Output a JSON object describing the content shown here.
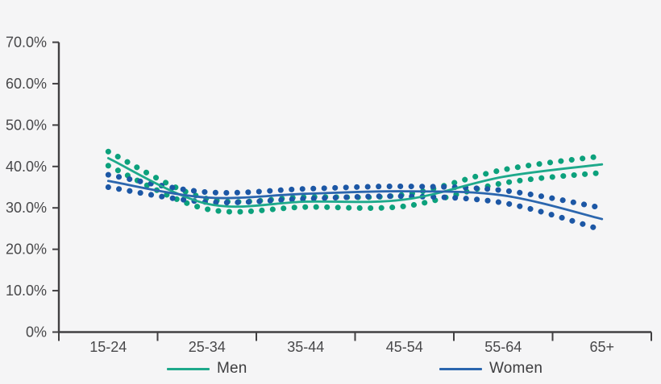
{
  "colors": {
    "background": "#f5f5f6",
    "axis": "#414042",
    "label_text": "#48484a",
    "men_line": "#1ea98b",
    "men_dots": "#0ca17c",
    "women_line": "#2b66ae",
    "women_dots": "#1c57a5"
  },
  "chart_data": {
    "type": "line",
    "title": "",
    "xlabel": "",
    "ylabel": "",
    "ylim": [
      0,
      70
    ],
    "grid": false,
    "legend_position": "bottom",
    "categories": [
      "15-24",
      "25-34",
      "35-44",
      "45-54",
      "55-64",
      "65+"
    ],
    "y_ticks": [
      {
        "value": 70,
        "label": "70.0%"
      },
      {
        "value": 60,
        "label": "60.0%"
      },
      {
        "value": 50,
        "label": "50.0%"
      },
      {
        "value": 40,
        "label": "40.0%"
      },
      {
        "value": 30,
        "label": "30.0%"
      },
      {
        "value": 20,
        "label": "20.0%"
      },
      {
        "value": 10,
        "label": "10.0%"
      },
      {
        "value": 0,
        "label": "0%"
      }
    ],
    "series": [
      {
        "name": "Men",
        "color": "#1ea98b",
        "dot_color": "#0ca17c",
        "values": [
          42.0,
          31.0,
          31.5,
          32.0,
          37.5,
          40.5
        ],
        "ci_upper": [
          43.6,
          32.2,
          32.6,
          33.2,
          39.2,
          42.5
        ],
        "ci_lower": [
          40.2,
          29.7,
          30.2,
          30.4,
          36.0,
          38.5
        ]
      },
      {
        "name": "Women",
        "color": "#2b66ae",
        "dot_color": "#1c57a5",
        "values": [
          36.5,
          32.5,
          33.4,
          34.0,
          33.0,
          27.3
        ],
        "ci_upper": [
          38.0,
          33.8,
          34.6,
          35.2,
          34.2,
          30.0
        ],
        "ci_lower": [
          35.0,
          31.4,
          32.2,
          32.8,
          31.2,
          24.7
        ]
      }
    ]
  }
}
